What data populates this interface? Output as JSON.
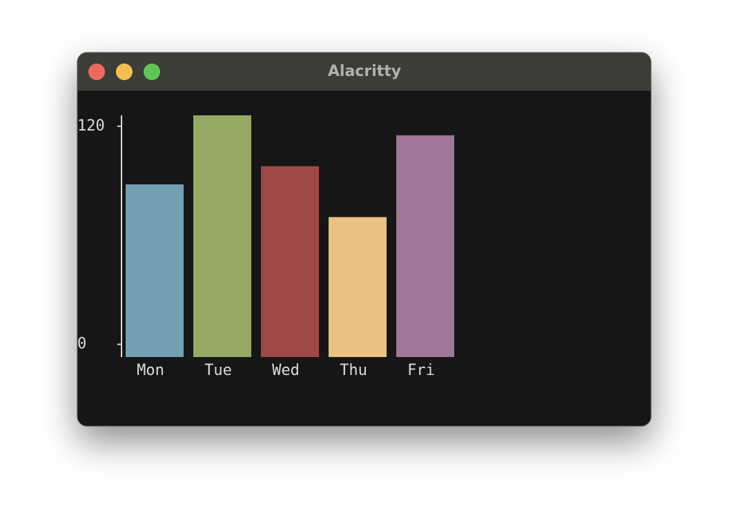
{
  "window_title": "Alacritty",
  "chart_data": {
    "type": "bar",
    "categories": [
      "Mon",
      "Tue",
      "Wed",
      "Thu",
      "Fri"
    ],
    "values": [
      88,
      126,
      98,
      70,
      115
    ],
    "colors": [
      "#739fb3",
      "#95a864",
      "#9e4848",
      "#ebc182",
      "#a07699"
    ],
    "ylim": [
      -7,
      126
    ],
    "yticks": [
      0,
      120
    ],
    "grid": false
  }
}
